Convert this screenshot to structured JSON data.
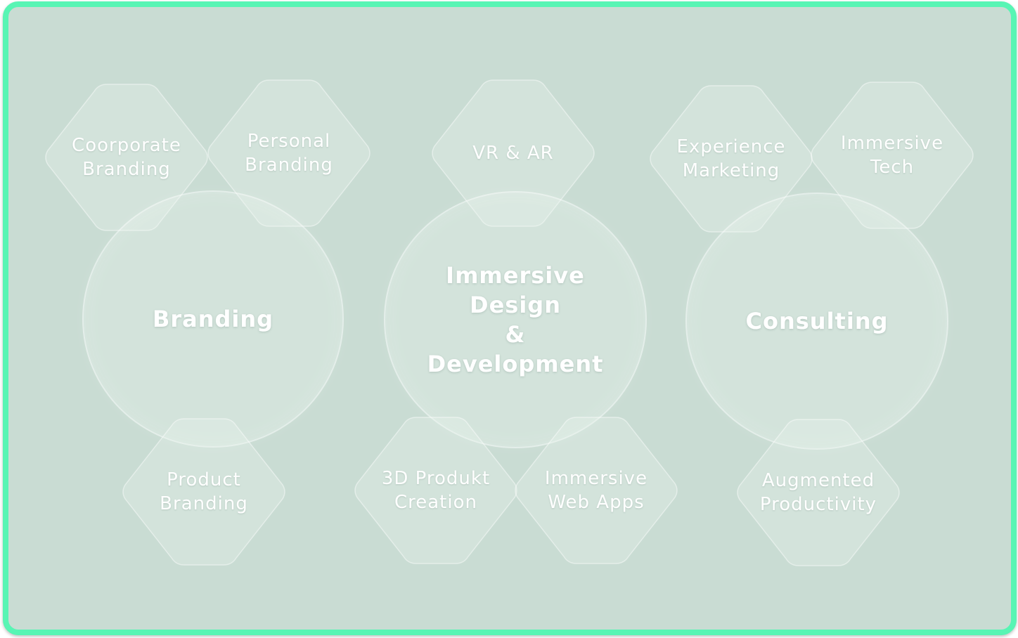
{
  "colors": {
    "border": "#58f5b4",
    "background": "#c9dcd3",
    "text": "#ffffff"
  },
  "services": [
    {
      "label": "Branding",
      "sub": [
        "Coorporate\nBranding",
        "Personal\nBranding",
        "Product\nBranding"
      ]
    },
    {
      "label": "Immersive\nDesign\n&\nDevelopment",
      "sub": [
        "VR & AR",
        "3D Produkt\nCreation",
        "Immersive\nWeb Apps"
      ]
    },
    {
      "label": "Consulting",
      "sub": [
        "Experience\nMarketing",
        "Immersive\nTech",
        "Augmented\nProductivity"
      ]
    }
  ]
}
